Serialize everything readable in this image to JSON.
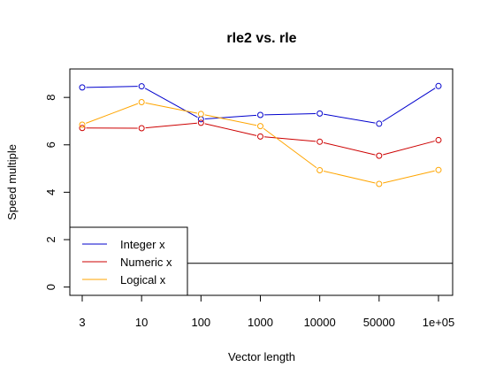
{
  "chart_data": {
    "type": "line",
    "title": "rle2 vs. rle",
    "xlabel": "Vector length",
    "ylabel": "Speed multiple",
    "categories": [
      "3",
      "10",
      "100",
      "1000",
      "10000",
      "50000",
      "1e+05"
    ],
    "ylim": [
      -0.35,
      9.2
    ],
    "yticks": [
      "0",
      "2",
      "4",
      "6",
      "8"
    ],
    "yticks_values": [
      0,
      2,
      4,
      6,
      8
    ],
    "series": [
      {
        "name": "Integer x",
        "color": "#0000CD",
        "values": [
          8.42,
          8.47,
          7.08,
          7.26,
          7.32,
          6.89,
          8.48
        ]
      },
      {
        "name": "Numeric x",
        "color": "#CD0000",
        "values": [
          6.71,
          6.7,
          6.93,
          6.35,
          6.13,
          5.54,
          6.2
        ]
      },
      {
        "name": "Logical x",
        "color": "#FFA500",
        "values": [
          6.85,
          7.8,
          7.3,
          6.79,
          4.93,
          4.35,
          4.94
        ]
      }
    ],
    "reference_line": {
      "y": 1,
      "color": "#000000"
    },
    "legend": "bottom-left",
    "grid": false
  }
}
